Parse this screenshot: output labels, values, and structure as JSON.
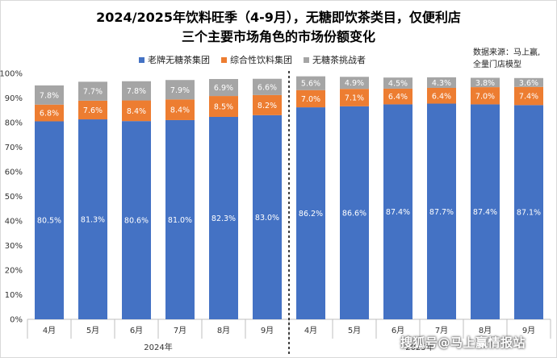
{
  "chart_data": {
    "type": "bar",
    "stacked": true,
    "title_line1": "2024/2025年饮料旺季（4-9月），无糖即饮茶类目，仅便利店",
    "title_line2": "三个主要市场角色的市场份额变化",
    "source_line1": "数据来源：马上赢,",
    "source_line2": "全量门店模型",
    "categories": [
      "4月",
      "5月",
      "6月",
      "7月",
      "8月",
      "9月",
      "4月",
      "5月",
      "6月",
      "7月",
      "8月",
      "9月"
    ],
    "groups": [
      {
        "label": "2024年",
        "count": 6
      },
      {
        "label": "2025年",
        "count": 6
      }
    ],
    "series": [
      {
        "name": "老牌无糖茶集团",
        "color": "#4472C4",
        "values": [
          80.5,
          81.3,
          80.6,
          81.0,
          82.3,
          83.0,
          86.2,
          86.6,
          87.4,
          87.7,
          87.4,
          87.1
        ],
        "labels": [
          "80.5%",
          "81.3%",
          "80.6%",
          "81.0%",
          "82.3%",
          "83.0%",
          "86.2%",
          "86.6%",
          "87.4%",
          "87.7%",
          "87.4%",
          "87.1%"
        ]
      },
      {
        "name": "综合性饮料集团",
        "color": "#ED7D31",
        "values": [
          6.8,
          7.6,
          8.4,
          8.4,
          8.5,
          8.2,
          7.0,
          7.1,
          6.4,
          6.4,
          7.0,
          7.4
        ],
        "labels": [
          "6.8%",
          "7.6%",
          "8.4%",
          "8.4%",
          "8.5%",
          "8.2%",
          "7.0%",
          "7.1%",
          "6.4%",
          "6.4%",
          "7.0%",
          "7.4%"
        ]
      },
      {
        "name": "无糖茶挑战者",
        "color": "#A5A5A5",
        "values": [
          7.8,
          7.7,
          7.8,
          7.9,
          6.9,
          6.6,
          5.6,
          4.9,
          4.5,
          4.3,
          3.8,
          3.6
        ],
        "labels": [
          "7.8%",
          "7.7%",
          "7.8%",
          "7.9%",
          "6.9%",
          "6.6%",
          "5.6%",
          "4.9%",
          "4.5%",
          "4.3%",
          "3.8%",
          "3.6%"
        ]
      }
    ],
    "ylim": [
      0,
      100
    ],
    "yticks": [
      "0%",
      "10%",
      "20%",
      "30%",
      "40%",
      "50%",
      "60%",
      "70%",
      "80%",
      "90%",
      "100%"
    ],
    "grid": false,
    "legend_position": "top-center"
  },
  "watermark": "搜狐号@马上赢情报站"
}
